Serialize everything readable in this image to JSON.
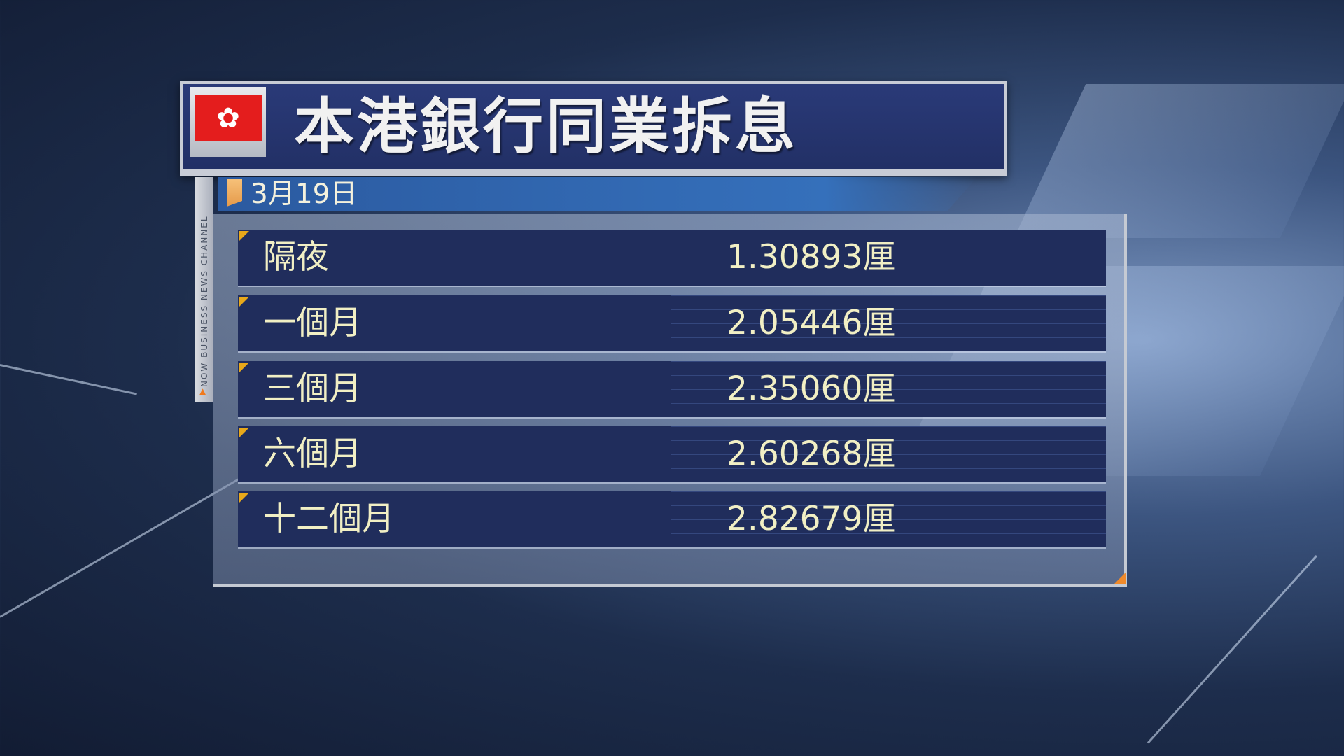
{
  "title": "本港銀行同業拆息",
  "flag_icon": "hong-kong-flag",
  "date": "3月19日",
  "side_label": "NOW BUSINESS NEWS CHANNEL",
  "colors": {
    "row_bg": "#202d5c",
    "text": "#f1efc4",
    "title_bar": "#2a3a78",
    "accent": "#e8a81a"
  },
  "rates": [
    {
      "term": "隔夜",
      "value": "1.30893厘"
    },
    {
      "term": "一個月",
      "value": "2.05446厘"
    },
    {
      "term": "三個月",
      "value": "2.35060厘"
    },
    {
      "term": "六個月",
      "value": "2.60268厘"
    },
    {
      "term": "十二個月",
      "value": "2.82679厘"
    }
  ]
}
